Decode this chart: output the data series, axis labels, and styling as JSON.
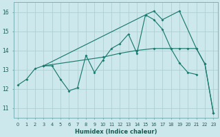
{
  "xlabel": "Humidex (Indice chaleur)",
  "bg_color": "#cde8ec",
  "grid_color": "#b0d0d4",
  "line_color": "#1a7a6e",
  "xlim": [
    -0.5,
    23.5
  ],
  "ylim": [
    10.5,
    16.5
  ],
  "yticks": [
    11,
    12,
    13,
    14,
    15,
    16
  ],
  "xticks": [
    0,
    1,
    2,
    3,
    4,
    5,
    6,
    7,
    8,
    9,
    10,
    11,
    12,
    13,
    14,
    15,
    16,
    17,
    18,
    19,
    20,
    21,
    22,
    23
  ],
  "s1_x": [
    0,
    1,
    2,
    3,
    4,
    5,
    6,
    7,
    8,
    9,
    10,
    11,
    12,
    13,
    14,
    15,
    16,
    17,
    18,
    19,
    20,
    21
  ],
  "s1_y": [
    12.2,
    12.5,
    13.05,
    13.2,
    13.2,
    12.5,
    11.9,
    12.05,
    13.75,
    12.85,
    13.5,
    14.1,
    14.35,
    14.85,
    13.85,
    15.85,
    15.6,
    15.1,
    14.1,
    13.35,
    12.85,
    12.75
  ],
  "s2_x": [
    3,
    15,
    16,
    17,
    19,
    21,
    22,
    23
  ],
  "s2_y": [
    13.2,
    15.85,
    16.05,
    15.6,
    16.05,
    14.1,
    13.3,
    10.75
  ],
  "s3_x": [
    3,
    10,
    12,
    14,
    16,
    18,
    19,
    20,
    21,
    22,
    23
  ],
  "s3_y": [
    13.2,
    13.65,
    13.85,
    14.0,
    14.1,
    14.1,
    14.1,
    14.1,
    14.1,
    13.3,
    10.75
  ]
}
